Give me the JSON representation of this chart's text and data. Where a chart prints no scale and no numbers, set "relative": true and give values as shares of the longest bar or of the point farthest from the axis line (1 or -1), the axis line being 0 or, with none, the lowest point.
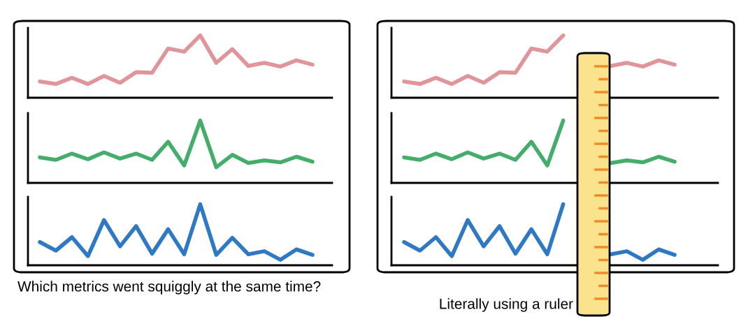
{
  "chart_data": [
    {
      "type": "line",
      "relative": true,
      "categories": [
        null,
        null,
        null,
        null,
        null,
        null,
        null,
        null,
        null,
        null,
        null,
        null,
        null,
        null,
        null,
        null,
        null,
        null
      ],
      "series": [
        {
          "color": "#e0959a",
          "values": [
            0.26,
            0.22,
            0.32,
            0.22,
            0.35,
            0.24,
            0.41,
            0.4,
            0.79,
            0.74,
            1,
            0.56,
            0.78,
            0.51,
            0.56,
            0.5,
            0.6,
            0.53
          ]
        }
      ]
    },
    {
      "type": "line",
      "relative": true,
      "categories": [
        null,
        null,
        null,
        null,
        null,
        null,
        null,
        null,
        null,
        null,
        null,
        null,
        null,
        null,
        null,
        null,
        null,
        null
      ],
      "series": [
        {
          "color": "#44ad6a",
          "values": [
            0.41,
            0.37,
            0.47,
            0.38,
            0.49,
            0.39,
            0.47,
            0.37,
            0.66,
            0.28,
            1,
            0.25,
            0.45,
            0.32,
            0.36,
            0.33,
            0.42,
            0.34
          ]
        }
      ]
    },
    {
      "type": "line",
      "relative": true,
      "categories": [
        null,
        null,
        null,
        null,
        null,
        null,
        null,
        null,
        null,
        null,
        null,
        null,
        null,
        null,
        null,
        null,
        null,
        null
      ],
      "series": [
        {
          "color": "#2f78c4",
          "values": [
            0.38,
            0.24,
            0.46,
            0.15,
            0.74,
            0.31,
            0.64,
            0.19,
            0.59,
            0.18,
            1,
            0.17,
            0.45,
            0.18,
            0.23,
            0.09,
            0.26,
            0.17
          ]
        }
      ],
      "annotations": [
        "Which metrics went squiggly at the same time?"
      ]
    },
    {
      "type": "line",
      "relative": true,
      "categories": [
        null,
        null,
        null,
        null,
        null,
        null,
        null,
        null,
        null,
        null,
        null,
        null,
        null,
        null,
        null,
        null,
        null,
        null
      ],
      "series": [
        {
          "color": "#e0959a",
          "values": [
            0.26,
            0.22,
            0.32,
            0.22,
            0.35,
            0.24,
            0.41,
            0.4,
            0.79,
            0.74,
            1,
            null,
            null,
            null,
            null,
            null,
            null,
            null
          ]
        },
        {
          "color": "#e0959a",
          "values": [
            null,
            null,
            null,
            null,
            null,
            null,
            null,
            null,
            null,
            null,
            null,
            null,
            null,
            0.51,
            0.56,
            0.5,
            0.6,
            0.53
          ]
        }
      ]
    },
    {
      "type": "line",
      "relative": true,
      "categories": [
        null,
        null,
        null,
        null,
        null,
        null,
        null,
        null,
        null,
        null,
        null,
        null,
        null,
        null,
        null,
        null,
        null,
        null
      ],
      "series": [
        {
          "color": "#44ad6a",
          "values": [
            0.41,
            0.37,
            0.47,
            0.38,
            0.49,
            0.39,
            0.47,
            0.37,
            0.66,
            0.28,
            1,
            null,
            null,
            null,
            null,
            null,
            null,
            null
          ]
        },
        {
          "color": "#44ad6a",
          "values": [
            null,
            null,
            null,
            null,
            null,
            null,
            null,
            null,
            null,
            null,
            null,
            null,
            null,
            0.32,
            0.36,
            0.33,
            0.42,
            0.34
          ]
        }
      ]
    },
    {
      "type": "line",
      "relative": true,
      "categories": [
        null,
        null,
        null,
        null,
        null,
        null,
        null,
        null,
        null,
        null,
        null,
        null,
        null,
        null,
        null,
        null,
        null,
        null
      ],
      "series": [
        {
          "color": "#2f78c4",
          "values": [
            0.38,
            0.24,
            0.46,
            0.15,
            0.74,
            0.31,
            0.64,
            0.19,
            0.59,
            0.18,
            1,
            null,
            null,
            null,
            null,
            null,
            null,
            null
          ]
        },
        {
          "color": "#2f78c4",
          "values": [
            null,
            null,
            null,
            null,
            null,
            null,
            null,
            null,
            null,
            null,
            null,
            null,
            null,
            0.18,
            0.23,
            0.09,
            0.26,
            0.17
          ]
        }
      ],
      "annotations": [
        "Literally using a ruler"
      ]
    }
  ]
}
